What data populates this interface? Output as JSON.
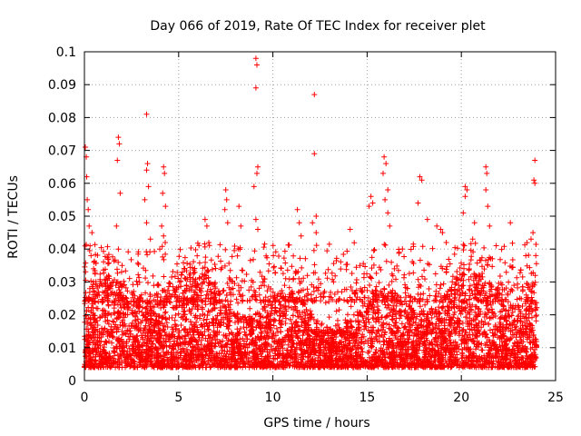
{
  "chart_data": {
    "type": "scatter",
    "title": "Day 066 of 2019, Rate Of TEC Index for receiver plet",
    "xlabel": "GPS time / hours",
    "ylabel": "ROTI / TECUs",
    "xlim": [
      0,
      25
    ],
    "ylim": [
      0,
      0.1
    ],
    "xticks": [
      0,
      5,
      10,
      15,
      20,
      25
    ],
    "xtick_labels": [
      "0",
      "5",
      "10",
      "15",
      "20",
      "25"
    ],
    "yticks": [
      0,
      0.01,
      0.02,
      0.03,
      0.04,
      0.05,
      0.06,
      0.07,
      0.08,
      0.09,
      0.1
    ],
    "ytick_labels": [
      "0",
      "0.01",
      "0.02",
      "0.03",
      "0.04",
      "0.05",
      "0.06",
      "0.07",
      "0.08",
      "0.09",
      "0.1"
    ],
    "grid": true,
    "marker": "+",
    "color": "#ff0000",
    "series": [
      {
        "name": "ROTI",
        "description": "dense band of points roughly 0.005-0.025 TECU/s throughout 0-24 h with spikes",
        "band": {
          "x_start": 0,
          "x_end": 24,
          "y_min": 0.004,
          "y_max": 0.026,
          "density": 5500
        },
        "points": [
          [
            0.05,
            0.071
          ],
          [
            0.1,
            0.068
          ],
          [
            0.12,
            0.062
          ],
          [
            0.15,
            0.055
          ],
          [
            0.2,
            0.052
          ],
          [
            0.25,
            0.047
          ],
          [
            0.3,
            0.041
          ],
          [
            0.35,
            0.038
          ],
          [
            0.4,
            0.045
          ],
          [
            0.5,
            0.036
          ],
          [
            1.8,
            0.074
          ],
          [
            1.85,
            0.072
          ],
          [
            1.75,
            0.067
          ],
          [
            1.9,
            0.057
          ],
          [
            1.7,
            0.047
          ],
          [
            1.8,
            0.04
          ],
          [
            2.0,
            0.035
          ],
          [
            3.3,
            0.081
          ],
          [
            3.35,
            0.066
          ],
          [
            3.3,
            0.064
          ],
          [
            3.4,
            0.059
          ],
          [
            3.2,
            0.055
          ],
          [
            3.3,
            0.048
          ],
          [
            3.5,
            0.043
          ],
          [
            4.2,
            0.065
          ],
          [
            4.25,
            0.063
          ],
          [
            4.15,
            0.057
          ],
          [
            4.3,
            0.053
          ],
          [
            4.1,
            0.047
          ],
          [
            4.2,
            0.044
          ],
          [
            4.0,
            0.04
          ],
          [
            5.2,
            0.033
          ],
          [
            6.4,
            0.049
          ],
          [
            6.5,
            0.047
          ],
          [
            6.6,
            0.042
          ],
          [
            7.5,
            0.058
          ],
          [
            7.55,
            0.055
          ],
          [
            7.45,
            0.052
          ],
          [
            7.6,
            0.048
          ],
          [
            8.2,
            0.053
          ],
          [
            8.3,
            0.047
          ],
          [
            9.1,
            0.098
          ],
          [
            9.15,
            0.096
          ],
          [
            9.1,
            0.089
          ],
          [
            9.2,
            0.065
          ],
          [
            9.15,
            0.063
          ],
          [
            9.0,
            0.059
          ],
          [
            9.1,
            0.049
          ],
          [
            9.2,
            0.046
          ],
          [
            11.3,
            0.052
          ],
          [
            11.4,
            0.048
          ],
          [
            11.5,
            0.044
          ],
          [
            12.2,
            0.087
          ],
          [
            12.2,
            0.069
          ],
          [
            12.3,
            0.05
          ],
          [
            12.1,
            0.048
          ],
          [
            12.3,
            0.045
          ],
          [
            14.1,
            0.046
          ],
          [
            15.2,
            0.056
          ],
          [
            15.3,
            0.054
          ],
          [
            15.1,
            0.053
          ],
          [
            15.9,
            0.068
          ],
          [
            16.0,
            0.066
          ],
          [
            15.85,
            0.063
          ],
          [
            16.1,
            0.058
          ],
          [
            15.95,
            0.055
          ],
          [
            16.1,
            0.051
          ],
          [
            16.2,
            0.047
          ],
          [
            17.8,
            0.062
          ],
          [
            17.9,
            0.061
          ],
          [
            17.7,
            0.054
          ],
          [
            18.2,
            0.049
          ],
          [
            18.7,
            0.047
          ],
          [
            18.9,
            0.046
          ],
          [
            19.0,
            0.045
          ],
          [
            19.2,
            0.042
          ],
          [
            20.2,
            0.059
          ],
          [
            20.3,
            0.058
          ],
          [
            20.2,
            0.056
          ],
          [
            20.1,
            0.051
          ],
          [
            20.7,
            0.048
          ],
          [
            20.6,
            0.043
          ],
          [
            21.3,
            0.065
          ],
          [
            21.35,
            0.063
          ],
          [
            21.3,
            0.058
          ],
          [
            21.4,
            0.053
          ],
          [
            21.5,
            0.047
          ],
          [
            22.6,
            0.048
          ],
          [
            23.9,
            0.067
          ],
          [
            23.85,
            0.061
          ],
          [
            23.9,
            0.06
          ],
          [
            23.8,
            0.045
          ],
          [
            23.7,
            0.043
          ],
          [
            23.95,
            0.038
          ]
        ]
      }
    ]
  }
}
